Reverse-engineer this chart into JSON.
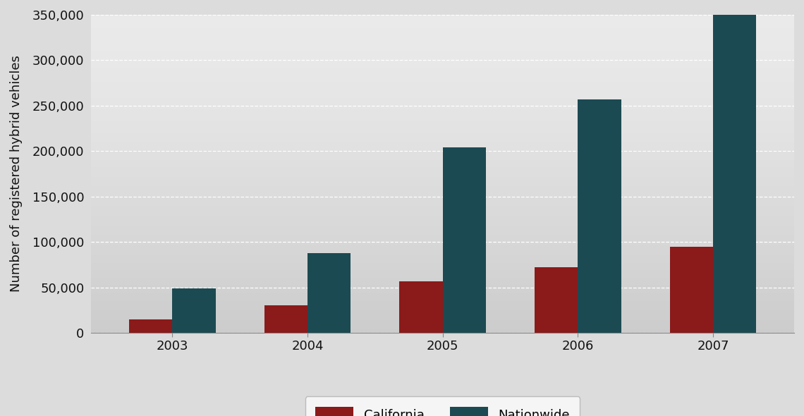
{
  "years": [
    "2003",
    "2004",
    "2005",
    "2006",
    "2007"
  ],
  "california": [
    15000,
    30000,
    57000,
    72000,
    95000
  ],
  "nationwide": [
    49000,
    88000,
    204000,
    257000,
    350000
  ],
  "california_color": "#8B1A1A",
  "nationwide_color": "#1C4A52",
  "background_color": "#DCDCDC",
  "plot_bg_top": "#E8E8E8",
  "plot_bg_bottom": "#D0D0D0",
  "outer_bg": "#DCDCDC",
  "ylabel": "Number of registered hybrid vehicles",
  "ylim": [
    0,
    350000
  ],
  "yticks": [
    0,
    50000,
    100000,
    150000,
    200000,
    250000,
    300000,
    350000
  ],
  "ytick_labels": [
    "0",
    "50,000",
    "100,000",
    "150,000",
    "200,000",
    "250,000",
    "300,000",
    "350,000"
  ],
  "legend_labels": [
    "California",
    "Nationwide"
  ],
  "bar_width": 0.32,
  "grid_color": "#FFFFFF",
  "tick_fontsize": 13,
  "ylabel_fontsize": 13,
  "legend_fontsize": 13
}
